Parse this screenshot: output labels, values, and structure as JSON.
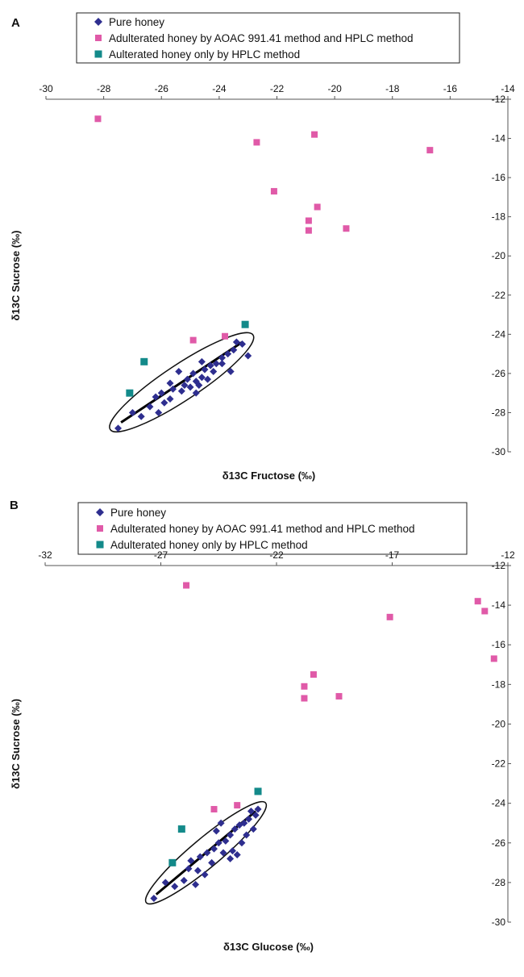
{
  "colors": {
    "pure": "#2e2e8f",
    "aoac": "#e05aa8",
    "hplc": "#138a8a",
    "axis": "#555555",
    "text": "#111111"
  },
  "chart_data": [
    {
      "panel_label": "A",
      "type": "scatter",
      "xlabel": "δ13C Fructose (‰)",
      "ylabel": "δ13C Sucrose (‰)",
      "xlim": [
        -30,
        -14
      ],
      "ylim": [
        -30,
        -12
      ],
      "x_ticks": [
        -30,
        -28,
        -26,
        -24,
        -22,
        -20,
        -18,
        -16,
        -14
      ],
      "y_ticks": [
        -12,
        -14,
        -16,
        -18,
        -20,
        -22,
        -24,
        -26,
        -28,
        -30
      ],
      "y_axis_position": "right",
      "x_axis_position": "top",
      "legend": [
        "Pure honey",
        "Adulterated honey by AOAC 991.41 method and HPLC method",
        "Aulterated honey only by HPLC method"
      ],
      "series": [
        {
          "name": "Pure honey",
          "marker": "diamond",
          "color_key": "pure",
          "points": [
            [
              -27.5,
              -28.8
            ],
            [
              -27.0,
              -28.0
            ],
            [
              -26.7,
              -28.2
            ],
            [
              -26.4,
              -27.7
            ],
            [
              -26.1,
              -28.0
            ],
            [
              -26.2,
              -27.2
            ],
            [
              -25.9,
              -27.5
            ],
            [
              -25.7,
              -27.3
            ],
            [
              -26.0,
              -27.0
            ],
            [
              -25.6,
              -26.8
            ],
            [
              -25.3,
              -26.9
            ],
            [
              -25.2,
              -26.6
            ],
            [
              -25.0,
              -26.7
            ],
            [
              -24.8,
              -26.4
            ],
            [
              -24.6,
              -26.2
            ],
            [
              -24.9,
              -26.0
            ],
            [
              -24.5,
              -25.8
            ],
            [
              -24.3,
              -25.6
            ],
            [
              -24.1,
              -25.5
            ],
            [
              -23.9,
              -25.2
            ],
            [
              -23.7,
              -25.0
            ],
            [
              -23.5,
              -24.8
            ],
            [
              -23.4,
              -24.4
            ],
            [
              -23.2,
              -24.5
            ],
            [
              -23.0,
              -25.1
            ],
            [
              -24.6,
              -25.4
            ],
            [
              -25.4,
              -25.9
            ],
            [
              -24.7,
              -26.6
            ],
            [
              -24.4,
              -26.3
            ],
            [
              -25.7,
              -26.5
            ],
            [
              -23.6,
              -25.9
            ],
            [
              -23.9,
              -25.5
            ],
            [
              -24.2,
              -25.9
            ],
            [
              -24.8,
              -27.0
            ],
            [
              -25.1,
              -26.3
            ]
          ]
        },
        {
          "name": "Adulterated honey by AOAC 991.41 method and HPLC method",
          "marker": "square",
          "color_key": "aoac",
          "points": [
            [
              -28.2,
              -13.0
            ],
            [
              -22.7,
              -14.2
            ],
            [
              -20.7,
              -13.8
            ],
            [
              -16.7,
              -14.6
            ],
            [
              -22.1,
              -16.7
            ],
            [
              -20.6,
              -17.5
            ],
            [
              -20.9,
              -18.2
            ],
            [
              -20.9,
              -18.7
            ],
            [
              -19.6,
              -18.6
            ],
            [
              -24.9,
              -24.3
            ],
            [
              -23.8,
              -24.1
            ],
            [
              -23.1,
              -23.5
            ]
          ]
        },
        {
          "name": "Aulterated honey only by HPLC method",
          "marker": "square",
          "color_key": "hplc",
          "points": [
            [
              -23.1,
              -23.5
            ],
            [
              -26.6,
              -25.4
            ],
            [
              -27.1,
              -27.0
            ]
          ]
        }
      ],
      "annotations": [
        "ellipse enclosing pure honey",
        "linear regression line through pure honey"
      ]
    },
    {
      "panel_label": "B",
      "type": "scatter",
      "xlabel": "δ13C Glucose (‰)",
      "ylabel": "δ13C Sucrose (‰)",
      "xlim": [
        -32,
        -12
      ],
      "ylim": [
        -30,
        -12
      ],
      "x_ticks": [
        -32,
        -27,
        -22,
        -17,
        -12
      ],
      "y_ticks": [
        -12,
        -14,
        -16,
        -18,
        -20,
        -22,
        -24,
        -26,
        -28,
        -30
      ],
      "y_axis_position": "right",
      "x_axis_position": "top",
      "legend": [
        "Pure honey",
        "Adulterated honey by AOAC 991.41 method and HPLC method",
        "Adulterated honey only by HPLC method"
      ],
      "series": [
        {
          "name": "Pure honey",
          "marker": "diamond",
          "color_key": "pure",
          "points": [
            [
              -27.3,
              -28.8
            ],
            [
              -26.8,
              -28.0
            ],
            [
              -26.4,
              -28.2
            ],
            [
              -26.0,
              -27.9
            ],
            [
              -25.8,
              -27.3
            ],
            [
              -25.4,
              -27.4
            ],
            [
              -25.7,
              -26.9
            ],
            [
              -25.3,
              -26.7
            ],
            [
              -25.0,
              -26.5
            ],
            [
              -24.7,
              -26.3
            ],
            [
              -24.5,
              -26.0
            ],
            [
              -24.2,
              -25.9
            ],
            [
              -24.0,
              -25.6
            ],
            [
              -23.8,
              -25.3
            ],
            [
              -23.6,
              -25.1
            ],
            [
              -23.4,
              -25.0
            ],
            [
              -23.2,
              -24.8
            ],
            [
              -23.1,
              -24.4
            ],
            [
              -22.9,
              -24.6
            ],
            [
              -22.8,
              -24.3
            ],
            [
              -24.3,
              -26.5
            ],
            [
              -24.0,
              -26.8
            ],
            [
              -23.7,
              -26.6
            ],
            [
              -24.6,
              -25.4
            ],
            [
              -25.1,
              -27.6
            ],
            [
              -24.4,
              -25.0
            ],
            [
              -23.5,
              -26.0
            ],
            [
              -23.0,
              -25.3
            ],
            [
              -23.9,
              -26.4
            ],
            [
              -25.5,
              -28.1
            ],
            [
              -24.8,
              -27.0
            ],
            [
              -23.3,
              -25.6
            ]
          ]
        },
        {
          "name": "Adulterated honey by AOAC 991.41 method and HPLC method",
          "marker": "square",
          "color_key": "aoac",
          "points": [
            [
              -25.9,
              -13.0
            ],
            [
              -17.1,
              -14.6
            ],
            [
              -13.3,
              -13.8
            ],
            [
              -13.0,
              -14.3
            ],
            [
              -12.6,
              -16.7
            ],
            [
              -20.4,
              -17.5
            ],
            [
              -20.8,
              -18.1
            ],
            [
              -20.8,
              -18.7
            ],
            [
              -19.3,
              -18.6
            ],
            [
              -24.7,
              -24.3
            ],
            [
              -23.7,
              -24.1
            ],
            [
              -22.8,
              -23.4
            ]
          ]
        },
        {
          "name": "Adulterated honey only by HPLC method",
          "marker": "square",
          "color_key": "hplc",
          "points": [
            [
              -22.8,
              -23.4
            ],
            [
              -26.1,
              -25.3
            ],
            [
              -26.5,
              -27.0
            ]
          ]
        }
      ],
      "annotations": [
        "ellipse enclosing pure honey",
        "linear regression line through pure honey"
      ]
    }
  ]
}
